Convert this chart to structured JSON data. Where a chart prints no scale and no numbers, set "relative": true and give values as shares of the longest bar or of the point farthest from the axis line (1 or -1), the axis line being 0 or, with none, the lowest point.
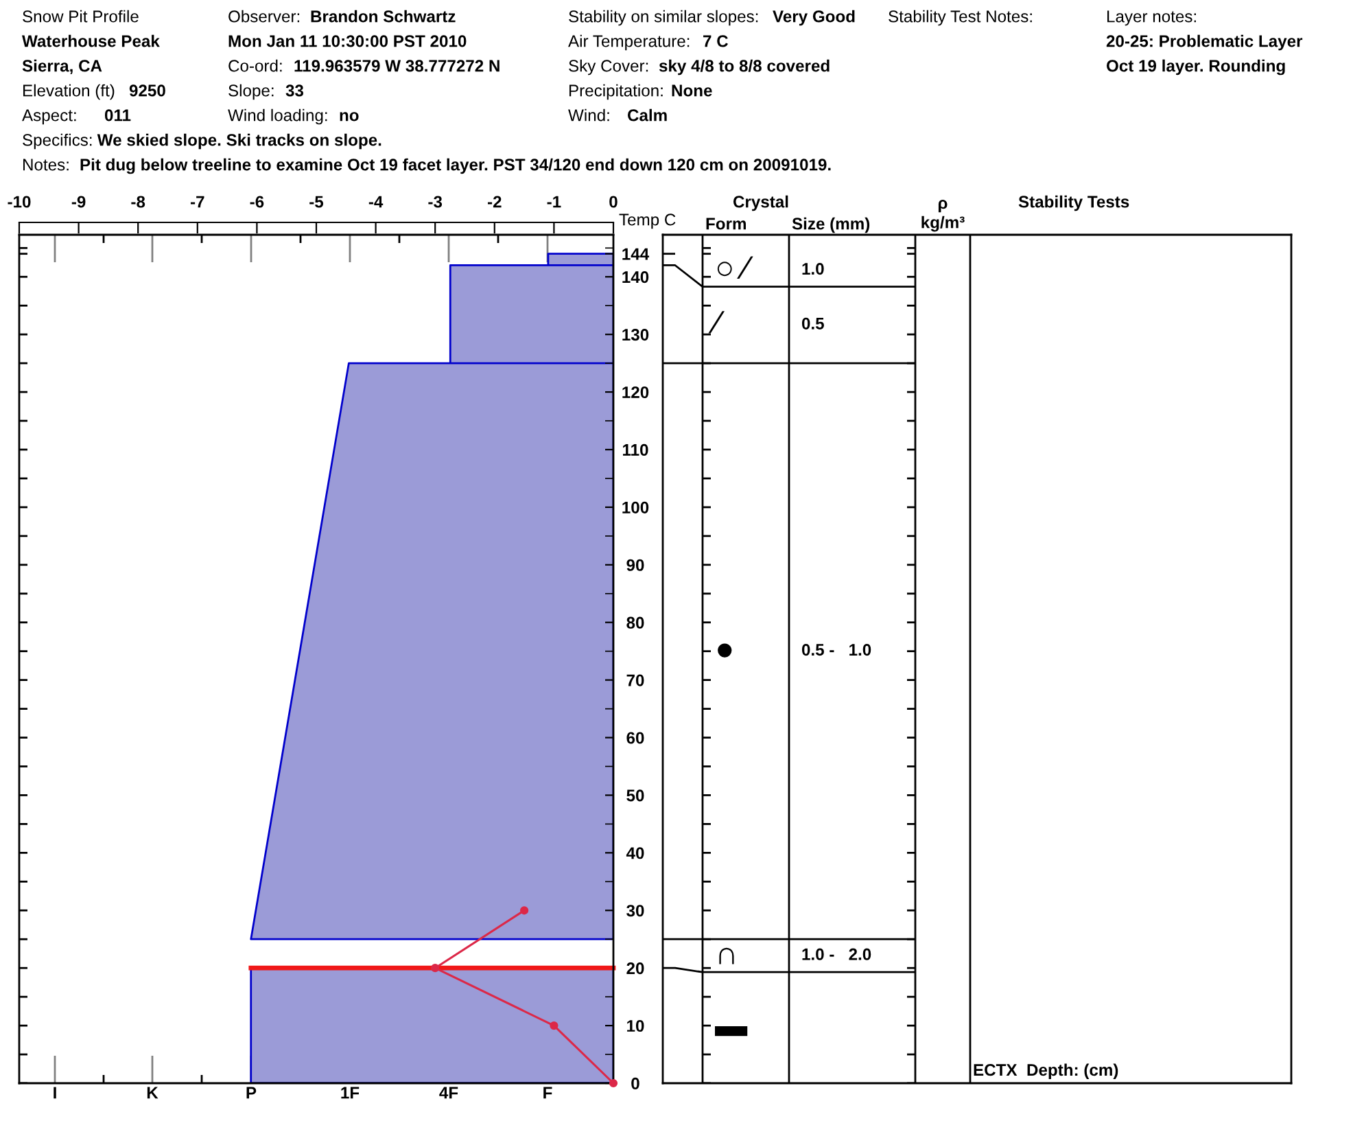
{
  "chart_data": [
    {
      "type": "area",
      "orientation": "horizontal",
      "relative": true,
      "annotations": [
        "Snow Pit Profile",
        "Observer:",
        "Brandon Schwartz",
        "Stability on similar slopes:",
        "Very Good",
        "Stability Test Notes:",
        "Layer notes:",
        "Waterhouse Peak",
        "Mon Jan 11 10:30:00 PST 2010",
        "Air Temperature:",
        "7 C",
        "20-25: Problematic Layer",
        "Sierra, CA",
        "Co-ord:",
        "119.963579 W 38.777272 N",
        "Sky Cover:",
        "sky 4/8 to 8/8 covered",
        "Oct 19 layer. Rounding",
        "Elevation (ft)",
        "9250",
        "Slope:",
        "33",
        "Precipitation:",
        "None",
        "Aspect:",
        "011",
        "Wind loading:",
        "no",
        "Wind:",
        "Calm",
        "Specifics:",
        "We skied slope. Ski tracks on slope.",
        "Notes:",
        "Pit dug below treeline to examine Oct 19 facet layer. PST 34/120 end down 120 cm on 20091019.",
        "I",
        "K",
        "P",
        "1F",
        "4F",
        "F"
      ],
      "ylim": [
        0,
        147.3
      ],
      "yticks": [
        0,
        {
          "value": 5,
          "label": null
        },
        10,
        {
          "value": 15,
          "label": null
        },
        20,
        {
          "value": 25,
          "label": null
        },
        30,
        {
          "value": 35,
          "label": null
        },
        40,
        {
          "value": 45,
          "label": null
        },
        50,
        {
          "value": 55,
          "label": null
        },
        60,
        {
          "value": 65,
          "label": null
        },
        70,
        {
          "value": 75,
          "label": null
        },
        80,
        {
          "value": 85,
          "label": null
        },
        90,
        {
          "value": 95,
          "label": null
        },
        100,
        {
          "value": 105,
          "label": null
        },
        110,
        {
          "value": 115,
          "label": null
        },
        120,
        {
          "value": 125,
          "label": null
        },
        130,
        {
          "value": 135,
          "label": null
        },
        140,
        144,
        {
          "value": 145,
          "label": null
        }
      ],
      "series": [
        {
          "type": "area",
          "color": "#9b9bd7",
          "x": [
            0,
            20,
            22.5,
            25,
            125,
            125,
            142,
            142,
            144
          ],
          "values": [
            -1,
            -1,
            null,
            -1,
            -0.73,
            -0.45,
            -0.45,
            -0.18,
            -0.18
          ]
        },
        {
          "type": "line",
          "color": "#f01818",
          "x": [
            20,
            20
          ],
          "values": [
            -1,
            0
          ]
        }
      ]
    },
    {
      "type": "line",
      "orientation": "horizontal",
      "x2lim": [
        -10,
        0
      ],
      "x2ticks": [
        -10,
        -9,
        -8,
        -7,
        -6,
        -5,
        -4,
        -3,
        -2,
        -1,
        0
      ],
      "x2label": "Temp C",
      "ylim": [
        0,
        147.3
      ],
      "tick_labels": "x",
      "series": [
        {
          "type": "line",
          "axis": "x2",
          "color": "#dc2848",
          "marker": "circle",
          "x": [
            0,
            10,
            20,
            30
          ],
          "values": [
            0,
            -1,
            -3,
            -1.5
          ]
        }
      ]
    },
    {
      "type": "other",
      "categories": [
        null,
        "Form",
        "Size (mm)",
        "ρ\nkg/m³",
        "Stability Tests"
      ],
      "annotations": [
        "Crystal",
        {
          "text": "○ ⁄",
          "x": "Form"
        },
        {
          "text": "1.0",
          "x": "Size (mm)"
        },
        {
          "text": "⁄",
          "x": "Form"
        },
        {
          "text": "0.5",
          "x": "Size (mm)"
        },
        {
          "text": "●",
          "x": "Form"
        },
        {
          "text": "0.5 -   1.0",
          "x": "Size (mm)"
        },
        {
          "text": "∩",
          "x": "Form"
        },
        {
          "text": "1.0 -   2.0",
          "x": "Size (mm)"
        },
        {
          "text": "▬",
          "x": "Form"
        },
        "ECTX  Depth: (cm)"
      ]
    }
  ]
}
